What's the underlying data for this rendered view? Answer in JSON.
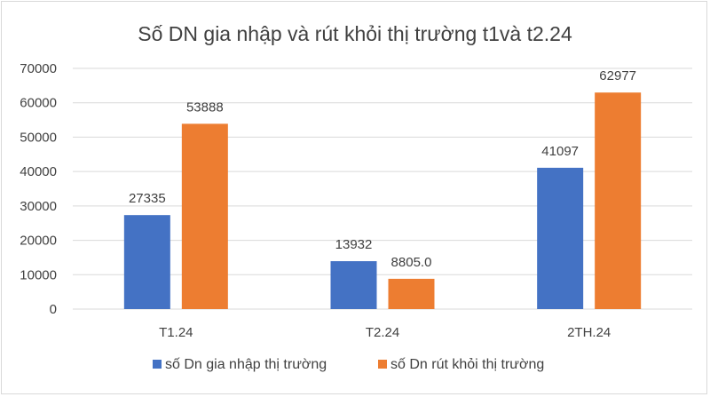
{
  "chart_data": {
    "type": "bar",
    "title": "Số DN gia nhập và rút khỏi thị trường t1và t2.24",
    "categories": [
      "T1.24",
      "T2.24",
      "2TH.24"
    ],
    "series": [
      {
        "name": "số Dn gia nhập thị trường",
        "color": "#4472C4",
        "values": [
          27335,
          13932,
          41097
        ],
        "labels": [
          "27335",
          "13932",
          "41097"
        ]
      },
      {
        "name": "số Dn rút khỏi thị trường",
        "color": "#ED7D31",
        "values": [
          53888,
          8805,
          62977
        ],
        "labels": [
          "53888",
          "8805.0",
          "62977"
        ]
      }
    ],
    "ylim": [
      0,
      70000
    ],
    "yticks": [
      "0",
      "10000",
      "20000",
      "30000",
      "40000",
      "50000",
      "60000",
      "70000"
    ],
    "grid": true,
    "legend_position": "bottom"
  }
}
